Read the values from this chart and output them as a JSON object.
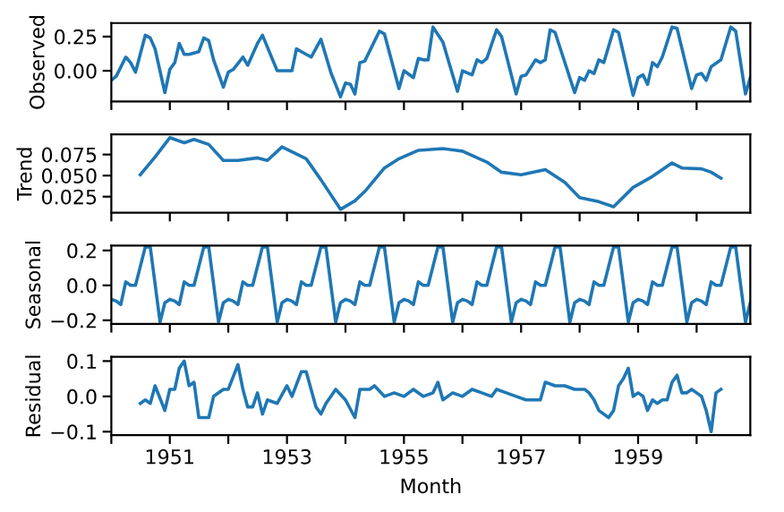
{
  "chart_data": [
    {
      "type": "line",
      "ylabel": "Observed",
      "tick_labels": "y",
      "xlim": [
        "1950-01",
        "1960-12"
      ],
      "ylim": [
        -0.224,
        0.349
      ],
      "xticks": [
        {
          "value": "1950",
          "label": null
        },
        {
          "value": "1951",
          "label": null
        },
        {
          "value": "1952",
          "label": null
        },
        {
          "value": "1953",
          "label": null
        },
        {
          "value": "1954",
          "label": null
        },
        {
          "value": "1955",
          "label": null
        },
        {
          "value": "1956",
          "label": null
        },
        {
          "value": "1957",
          "label": null
        },
        {
          "value": "1958",
          "label": null
        },
        {
          "value": "1959",
          "label": null
        },
        {
          "value": "1960",
          "label": null
        }
      ],
      "yticks": [
        {
          "value": 0,
          "label": "0.00"
        },
        {
          "value": 0.25,
          "label": "0.25"
        }
      ],
      "series": [
        {
          "color": "#1f77b4",
          "x": [
            "1950-01",
            "1950-02",
            "1950-04",
            "1950-05",
            "1950-06",
            "1950-08",
            "1950-09",
            "1950-10",
            "1950-12",
            "1951-01",
            "1951-02",
            "1951-03",
            "1951-04",
            "1951-05",
            "1951-07",
            "1951-08",
            "1951-09",
            "1951-10",
            "1951-12",
            "1952-01",
            "1952-02",
            "1952-04",
            "1952-05",
            "1952-07",
            "1952-08",
            "1952-11",
            "1952-12",
            "1953-02",
            "1953-03",
            "1953-05",
            "1953-06",
            "1953-08",
            "1953-10",
            "1953-12",
            "1954-01",
            "1954-02",
            "1954-03",
            "1954-04",
            "1954-05",
            "1954-08",
            "1954-09",
            "1954-12",
            "1955-01",
            "1955-03",
            "1955-04",
            "1955-05",
            "1955-06",
            "1955-07",
            "1955-09",
            "1955-12",
            "1956-01",
            "1956-03",
            "1956-04",
            "1956-05",
            "1956-06",
            "1956-08",
            "1956-09",
            "1956-12",
            "1957-01",
            "1957-02",
            "1957-04",
            "1957-05",
            "1957-06",
            "1957-07",
            "1957-08",
            "1957-12",
            "1958-01",
            "1958-02",
            "1958-03",
            "1958-04",
            "1958-05",
            "1958-06",
            "1958-08",
            "1958-09",
            "1958-12",
            "1959-01",
            "1959-02",
            "1959-03",
            "1959-04",
            "1959-05",
            "1959-06",
            "1959-08",
            "1959-09",
            "1959-12",
            "1960-01",
            "1960-02",
            "1960-03",
            "1960-04",
            "1960-06",
            "1960-08",
            "1960-09",
            "1960-11",
            "1960-12"
          ],
          "values": [
            -0.07,
            -0.04,
            0.1,
            0.06,
            -0.01,
            0.26,
            0.24,
            0.16,
            -0.16,
            0.01,
            0.06,
            0.2,
            0.12,
            0.12,
            0.14,
            0.24,
            0.22,
            0.08,
            -0.12,
            -0.01,
            0.01,
            0.1,
            0.04,
            0.2,
            0.26,
            0.0,
            0.0,
            0.0,
            0.16,
            0.12,
            0.1,
            0.23,
            -0.01,
            -0.19,
            -0.09,
            -0.1,
            -0.17,
            0.06,
            0.07,
            0.29,
            0.27,
            -0.13,
            0.0,
            -0.05,
            0.09,
            0.08,
            0.08,
            0.32,
            0.21,
            -0.15,
            0.0,
            -0.03,
            0.08,
            0.06,
            0.09,
            0.3,
            0.25,
            -0.17,
            -0.04,
            -0.03,
            0.08,
            0.06,
            0.08,
            0.3,
            0.28,
            -0.16,
            -0.05,
            -0.07,
            0.0,
            -0.02,
            0.08,
            0.06,
            0.3,
            0.28,
            -0.18,
            -0.05,
            -0.03,
            -0.1,
            0.06,
            0.03,
            0.1,
            0.32,
            0.31,
            -0.13,
            -0.03,
            -0.02,
            -0.07,
            0.03,
            0.08,
            0.32,
            0.29,
            -0.17,
            -0.05
          ]
        }
      ]
    },
    {
      "type": "line",
      "ylabel": "Trend",
      "tick_labels": "y",
      "xlim": [
        "1950-01",
        "1960-12"
      ],
      "ylim": [
        0.006,
        0.099
      ],
      "xticks": [
        {
          "value": "1950",
          "label": null
        },
        {
          "value": "1951",
          "label": null
        },
        {
          "value": "1952",
          "label": null
        },
        {
          "value": "1953",
          "label": null
        },
        {
          "value": "1954",
          "label": null
        },
        {
          "value": "1955",
          "label": null
        },
        {
          "value": "1956",
          "label": null
        },
        {
          "value": "1957",
          "label": null
        },
        {
          "value": "1958",
          "label": null
        },
        {
          "value": "1959",
          "label": null
        },
        {
          "value": "1960",
          "label": null
        }
      ],
      "yticks": [
        {
          "value": 0.025,
          "label": "0.025"
        },
        {
          "value": 0.05,
          "label": "0.050"
        },
        {
          "value": 0.075,
          "label": "0.075"
        }
      ],
      "series": [
        {
          "color": "#1f77b4",
          "x": [
            "1950-07",
            "1950-10",
            "1951-01",
            "1951-04",
            "1951-06",
            "1951-09",
            "1951-12",
            "1952-03",
            "1952-07",
            "1952-09",
            "1952-12",
            "1953-05",
            "1953-08",
            "1953-12",
            "1954-03",
            "1954-05",
            "1954-09",
            "1954-12",
            "1955-04",
            "1955-09",
            "1956-01",
            "1956-06",
            "1956-09",
            "1957-01",
            "1957-06",
            "1957-10",
            "1958-01",
            "1958-05",
            "1958-08",
            "1958-12",
            "1959-04",
            "1959-08",
            "1959-10",
            "1960-02",
            "1960-04",
            "1960-06"
          ],
          "values": [
            0.051,
            0.072,
            0.095,
            0.089,
            0.093,
            0.087,
            0.068,
            0.068,
            0.071,
            0.068,
            0.084,
            0.07,
            0.045,
            0.01,
            0.02,
            0.031,
            0.059,
            0.07,
            0.08,
            0.082,
            0.079,
            0.066,
            0.054,
            0.051,
            0.057,
            0.042,
            0.024,
            0.019,
            0.013,
            0.036,
            0.049,
            0.065,
            0.059,
            0.058,
            0.054,
            0.047
          ]
        }
      ]
    },
    {
      "type": "line",
      "ylabel": "Seasonal",
      "tick_labels": "y",
      "xlim": [
        "1950-01",
        "1960-12"
      ],
      "ylim": [
        -0.221,
        0.228
      ],
      "xticks": [
        {
          "value": "1950",
          "label": null
        },
        {
          "value": "1951",
          "label": null
        },
        {
          "value": "1952",
          "label": null
        },
        {
          "value": "1953",
          "label": null
        },
        {
          "value": "1954",
          "label": null
        },
        {
          "value": "1955",
          "label": null
        },
        {
          "value": "1956",
          "label": null
        },
        {
          "value": "1957",
          "label": null
        },
        {
          "value": "1958",
          "label": null
        },
        {
          "value": "1959",
          "label": null
        },
        {
          "value": "1960",
          "label": null
        }
      ],
      "yticks": [
        {
          "value": -0.2,
          "label": "−0.2"
        },
        {
          "value": 0,
          "label": "0.0"
        },
        {
          "value": 0.2,
          "label": "0.2"
        }
      ],
      "series": [
        {
          "color": "#1f77b4",
          "x": [
            "1950-01",
            "1950-02",
            "1950-03",
            "1950-04",
            "1950-05",
            "1950-06",
            "1950-08",
            "1950-09",
            "1950-11",
            "1950-12",
            "1951-01",
            "1951-02",
            "1951-03",
            "1951-04",
            "1951-05",
            "1951-06",
            "1951-08",
            "1951-09",
            "1951-11",
            "1951-12",
            "1952-01",
            "1952-02",
            "1952-03",
            "1952-04",
            "1952-05",
            "1952-06",
            "1952-08",
            "1952-09",
            "1952-11",
            "1952-12",
            "1953-01",
            "1953-02",
            "1953-03",
            "1953-04",
            "1953-05",
            "1953-06",
            "1953-08",
            "1953-09",
            "1953-11",
            "1953-12",
            "1954-01",
            "1954-02",
            "1954-03",
            "1954-04",
            "1954-05",
            "1954-06",
            "1954-08",
            "1954-09",
            "1954-11",
            "1954-12",
            "1955-01",
            "1955-02",
            "1955-03",
            "1955-04",
            "1955-05",
            "1955-06",
            "1955-08",
            "1955-09",
            "1955-11",
            "1955-12",
            "1956-01",
            "1956-02",
            "1956-03",
            "1956-04",
            "1956-05",
            "1956-06",
            "1956-08",
            "1956-09",
            "1956-11",
            "1956-12",
            "1957-01",
            "1957-02",
            "1957-03",
            "1957-04",
            "1957-05",
            "1957-06",
            "1957-08",
            "1957-09",
            "1957-11",
            "1957-12",
            "1958-01",
            "1958-02",
            "1958-03",
            "1958-04",
            "1958-05",
            "1958-06",
            "1958-08",
            "1958-09",
            "1958-11",
            "1958-12",
            "1959-01",
            "1959-02",
            "1959-03",
            "1959-04",
            "1959-05",
            "1959-06",
            "1959-08",
            "1959-09",
            "1959-11",
            "1959-12",
            "1960-01",
            "1960-02",
            "1960-03",
            "1960-04",
            "1960-05",
            "1960-06",
            "1960-08",
            "1960-09",
            "1960-11",
            "1960-12"
          ],
          "values": [
            -0.08,
            -0.09,
            -0.11,
            0.02,
            0.0,
            0.0,
            0.22,
            0.22,
            -0.21,
            -0.1,
            -0.08,
            -0.09,
            -0.11,
            0.02,
            0.0,
            0.0,
            0.22,
            0.22,
            -0.21,
            -0.1,
            -0.08,
            -0.09,
            -0.11,
            0.02,
            0.0,
            0.0,
            0.22,
            0.22,
            -0.21,
            -0.1,
            -0.08,
            -0.09,
            -0.11,
            0.02,
            0.0,
            0.0,
            0.22,
            0.22,
            -0.21,
            -0.1,
            -0.08,
            -0.09,
            -0.11,
            0.02,
            0.0,
            0.0,
            0.22,
            0.22,
            -0.21,
            -0.1,
            -0.08,
            -0.09,
            -0.11,
            0.02,
            0.0,
            0.0,
            0.22,
            0.22,
            -0.21,
            -0.1,
            -0.08,
            -0.09,
            -0.11,
            0.02,
            0.0,
            0.0,
            0.22,
            0.22,
            -0.21,
            -0.1,
            -0.08,
            -0.09,
            -0.11,
            0.02,
            0.0,
            0.0,
            0.22,
            0.22,
            -0.21,
            -0.1,
            -0.08,
            -0.09,
            -0.11,
            0.02,
            0.0,
            0.0,
            0.22,
            0.22,
            -0.21,
            -0.1,
            -0.08,
            -0.09,
            -0.11,
            0.02,
            0.0,
            0.0,
            0.22,
            0.22,
            -0.21,
            -0.1,
            -0.08,
            -0.09,
            -0.11,
            0.02,
            0.0,
            0.0,
            0.22,
            0.22,
            -0.21,
            -0.1
          ]
        }
      ]
    },
    {
      "type": "line",
      "ylabel": "Residual",
      "xlabel": "Month",
      "xlim": [
        "1950-01",
        "1960-12"
      ],
      "ylim": [
        -0.11,
        0.112
      ],
      "xticks": [
        {
          "value": "1950",
          "label": null
        },
        {
          "value": "1951",
          "label": "1951"
        },
        {
          "value": "1952",
          "label": null
        },
        {
          "value": "1953",
          "label": "1953"
        },
        {
          "value": "1954",
          "label": null
        },
        {
          "value": "1955",
          "label": "1955"
        },
        {
          "value": "1956",
          "label": null
        },
        {
          "value": "1957",
          "label": "1957"
        },
        {
          "value": "1958",
          "label": null
        },
        {
          "value": "1959",
          "label": "1959"
        },
        {
          "value": "1960",
          "label": null
        }
      ],
      "yticks": [
        {
          "value": -0.1,
          "label": "−0.1"
        },
        {
          "value": 0,
          "label": "0.0"
        },
        {
          "value": 0.1,
          "label": "0.1"
        }
      ],
      "series": [
        {
          "color": "#1f77b4",
          "x": [
            "1950-07",
            "1950-08",
            "1950-09",
            "1950-10",
            "1950-12",
            "1951-01",
            "1951-02",
            "1951-03",
            "1951-04",
            "1951-05",
            "1951-06",
            "1951-07",
            "1951-09",
            "1951-10",
            "1951-12",
            "1952-01",
            "1952-03",
            "1952-04",
            "1952-05",
            "1952-06",
            "1952-07",
            "1952-08",
            "1952-09",
            "1952-11",
            "1953-01",
            "1953-02",
            "1953-04",
            "1953-05",
            "1953-07",
            "1953-08",
            "1953-09",
            "1953-11",
            "1954-01",
            "1954-03",
            "1954-04",
            "1954-05",
            "1954-06",
            "1954-07",
            "1954-09",
            "1954-11",
            "1955-01",
            "1955-03",
            "1955-05",
            "1955-07",
            "1955-08",
            "1955-09",
            "1955-11",
            "1956-01",
            "1956-03",
            "1956-05",
            "1956-07",
            "1956-08",
            "1956-10",
            "1956-12",
            "1957-02",
            "1957-05",
            "1957-06",
            "1957-08",
            "1957-10",
            "1957-12",
            "1958-02",
            "1958-03",
            "1958-04",
            "1958-05",
            "1958-07",
            "1958-08",
            "1958-09",
            "1958-10",
            "1958-11",
            "1958-12",
            "1959-01",
            "1959-02",
            "1959-03",
            "1959-04",
            "1959-05",
            "1959-06",
            "1959-07",
            "1959-08",
            "1959-09",
            "1959-10",
            "1959-11",
            "1959-12",
            "1960-01",
            "1960-02",
            "1960-03",
            "1960-04",
            "1960-05",
            "1960-06"
          ],
          "values": [
            -0.02,
            -0.01,
            -0.02,
            0.03,
            -0.04,
            0.02,
            0.02,
            0.08,
            0.1,
            0.03,
            0.04,
            -0.06,
            -0.06,
            0.0,
            0.02,
            0.02,
            0.09,
            0.02,
            -0.03,
            -0.03,
            0.01,
            -0.05,
            -0.01,
            -0.02,
            0.03,
            0.0,
            0.07,
            0.07,
            -0.03,
            -0.05,
            -0.02,
            0.02,
            -0.01,
            -0.06,
            0.02,
            0.02,
            0.02,
            0.03,
            0.0,
            0.01,
            0.0,
            0.02,
            0.0,
            0.01,
            0.04,
            -0.01,
            0.01,
            0.0,
            0.02,
            0.01,
            0.0,
            0.02,
            0.01,
            0.0,
            -0.01,
            -0.01,
            0.04,
            0.03,
            0.03,
            0.02,
            0.02,
            0.01,
            -0.01,
            -0.04,
            -0.06,
            -0.04,
            0.03,
            0.05,
            0.08,
            0.0,
            0.01,
            0.0,
            -0.04,
            -0.01,
            -0.02,
            -0.01,
            -0.01,
            0.04,
            0.06,
            0.01,
            0.01,
            0.02,
            0.01,
            0.0,
            -0.04,
            -0.1,
            0.01,
            0.02
          ]
        }
      ]
    }
  ]
}
